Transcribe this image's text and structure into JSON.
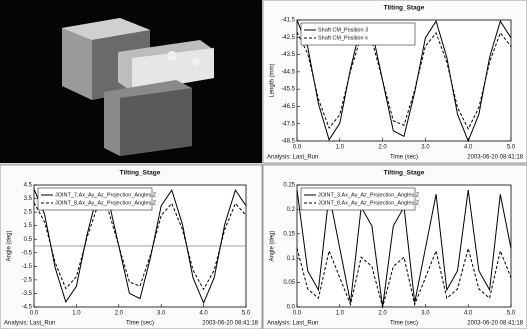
{
  "chart_data": [
    {
      "type": "line",
      "title": "Tilting_Stage",
      "y_label": "Length (mm)",
      "x_label": "Time (sec)",
      "analysis_label": "Analysis:  Last_Run",
      "timestamp": "2003-06-20 08:41:18",
      "x": [
        0,
        0.25,
        0.5,
        0.75,
        1,
        1.25,
        1.5,
        1.75,
        2,
        2.25,
        2.5,
        2.75,
        3,
        3.25,
        3.5,
        3.75,
        4,
        4.25,
        4.5,
        4.75,
        5
      ],
      "series": [
        {
          "name": "Shaft CM_Position 3",
          "color": "#000000",
          "line_style": "solid",
          "values": [
            -41.5,
            -43.05,
            -46.34,
            -48.43,
            -47.47,
            -44.32,
            -41.77,
            -42.09,
            -45,
            -47.91,
            -48.23,
            -45.68,
            -42.53,
            -41.57,
            -43.66,
            -46.95,
            -48.5,
            -46.95,
            -43.66,
            -41.57,
            -42.53
          ]
        },
        {
          "name": "Shaft CM_Position x",
          "color": "#000000",
          "line_style": "dashed",
          "values": [
            -42.2,
            -43.44,
            -46.07,
            -47.75,
            -46.98,
            -44.45,
            -42.41,
            -42.67,
            -45,
            -47.33,
            -47.59,
            -45.55,
            -43.02,
            -42.25,
            -43.93,
            -46.56,
            -47.8,
            -46.56,
            -43.93,
            -42.25,
            -43.02
          ]
        }
      ],
      "xlim": [
        0,
        5
      ],
      "xticks": [
        {
          "value": 0,
          "label": "0.0"
        },
        {
          "value": 1,
          "label": "1.0"
        },
        {
          "value": 2,
          "label": "2.0"
        },
        {
          "value": 3,
          "label": "3.0"
        },
        {
          "value": 4,
          "label": "4.0"
        },
        {
          "value": 5,
          "label": "5.0"
        }
      ],
      "ylim": [
        -48.5,
        -41.5
      ],
      "yticks": [
        -41.5,
        -42.5,
        -43.5,
        -44.5,
        -45.5,
        -46.5,
        -47.5,
        -48.5
      ],
      "legend": "upper left"
    },
    {
      "type": "line",
      "title": "Tilting_Stage",
      "y_label": "Angle (deg)",
      "x_label": "Time (sec)",
      "analysis_label": "Analysis:  Last_Run",
      "timestamp": "2003-06-20 08:41:18",
      "x": [
        0,
        0.25,
        0.5,
        0.75,
        1,
        1.25,
        1.5,
        1.75,
        2,
        2.25,
        2.5,
        2.75,
        3,
        3.25,
        3.5,
        3.75,
        4,
        4.25,
        4.5,
        4.75,
        5
      ],
      "series": [
        {
          "name": "JOINT_7.Ax_Ay_Az_Projection_Angles.Z",
          "color": "#000000",
          "line_style": "solid",
          "values": [
            4.2,
            2.34,
            -1.61,
            -4.12,
            -2.97,
            0.82,
            3.88,
            3.49,
            0,
            -3.49,
            -3.88,
            -0.82,
            2.97,
            4.12,
            1.61,
            -2.34,
            -4.2,
            -2.34,
            1.61,
            4.12,
            2.97
          ]
        },
        {
          "name": "JOINT_8.Ax_Ay_Az_Projection_Angles.Z",
          "color": "#000000",
          "line_style": "dashed",
          "values": [
            3.2,
            1.78,
            -1.23,
            -3.14,
            -2.26,
            0.62,
            2.96,
            2.66,
            0,
            -2.66,
            -2.96,
            -0.62,
            2.26,
            3.14,
            1.23,
            -1.78,
            -3.2,
            -1.78,
            1.23,
            3.14,
            2.26
          ]
        }
      ],
      "xlim": [
        0,
        5
      ],
      "xticks": [
        {
          "value": 0,
          "label": "0.0"
        },
        {
          "value": 1,
          "label": "1.0"
        },
        {
          "value": 2,
          "label": "2.0"
        },
        {
          "value": 3,
          "label": "3.0"
        },
        {
          "value": 4,
          "label": "4.0"
        },
        {
          "value": 5,
          "label": "5.0"
        }
      ],
      "ylim": [
        -4.5,
        4.5
      ],
      "yticks": [
        4.5,
        3.5,
        2.5,
        1.5,
        0.5,
        -0.5,
        -1.5,
        -2.5,
        -3.5,
        -4.5
      ],
      "legend": "upper left"
    },
    {
      "type": "line",
      "title": "Tilting_Stage",
      "y_label": "Angle (deg)",
      "x_label": "Time (sec)",
      "analysis_label": "Analysis:  Last_Run",
      "timestamp": "2003-06-20 08:41:18",
      "x": [
        0,
        0.25,
        0.5,
        0.75,
        1,
        1.25,
        1.5,
        1.75,
        2,
        2.25,
        2.5,
        2.75,
        3,
        3.25,
        3.5,
        3.75,
        4,
        4.25,
        4.5,
        4.75,
        5
      ],
      "series": [
        {
          "name": "JOINT_3.Ax_Ay_Az_Projection_Angles.Z",
          "color": "#000000",
          "line_style": "solid",
          "values": [
            0.24,
            0.074,
            0.035,
            0.231,
            0.12,
            0.009,
            0.205,
            0.166,
            0,
            0.166,
            0.205,
            0.009,
            0.12,
            0.231,
            0.035,
            0.074,
            0.24,
            0.074,
            0.035,
            0.231,
            0.12
          ]
        },
        {
          "name": "JOINT_8.Ax_Ay_Az_Projection_Angles.Z",
          "color": "#000000",
          "line_style": "dashed",
          "values": [
            0.12,
            0.037,
            0.018,
            0.115,
            0.06,
            0.005,
            0.102,
            0.083,
            0,
            0.083,
            0.102,
            0.005,
            0.06,
            0.115,
            0.018,
            0.037,
            0.12,
            0.037,
            0.018,
            0.115,
            0.06
          ]
        }
      ],
      "xlim": [
        0,
        5
      ],
      "xticks": [
        {
          "value": 0,
          "label": "0.0"
        },
        {
          "value": 1,
          "label": "1.0"
        },
        {
          "value": 2,
          "label": "2.0"
        },
        {
          "value": 3,
          "label": "3.0"
        },
        {
          "value": 4,
          "label": "4.0"
        },
        {
          "value": 5,
          "label": "5.0"
        }
      ],
      "ylim": [
        0,
        0.25
      ],
      "yticks": [
        {
          "value": 0,
          "label": "0.0"
        },
        0.05,
        0.1,
        0.15,
        0.2,
        0.25
      ],
      "legend": "upper left"
    }
  ]
}
